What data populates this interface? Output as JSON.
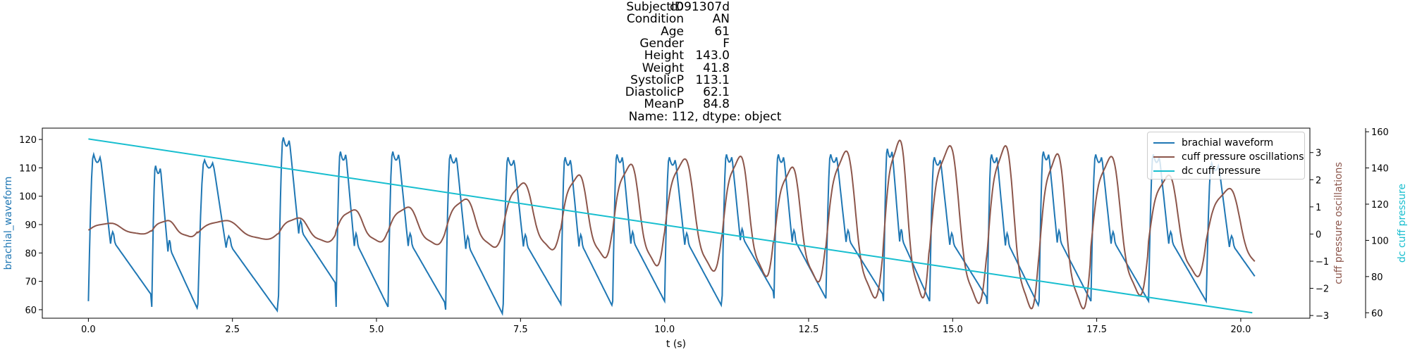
{
  "title": {
    "rows": [
      {
        "key": "SubjectID",
        "value": "c091307d"
      },
      {
        "key": "Condition",
        "value": "AN"
      },
      {
        "key": "Age",
        "value": "61"
      },
      {
        "key": "Gender",
        "value": "F"
      },
      {
        "key": "Height",
        "value": "143.0"
      },
      {
        "key": "Weight",
        "value": "41.8"
      },
      {
        "key": "SystolicP",
        "value": "113.1"
      },
      {
        "key": "DiastolicP",
        "value": "62.1"
      },
      {
        "key": "MeanP",
        "value": "84.8"
      }
    ],
    "footer": "Name: 112, dtype: object"
  },
  "chart_data": {
    "type": "line",
    "xlabel": "t (s)",
    "xlim": [
      -0.8,
      21.2
    ],
    "x_ticks": [
      "0.0",
      "2.5",
      "5.0",
      "7.5",
      "10.0",
      "12.5",
      "15.0",
      "17.5",
      "20.0"
    ],
    "grid": false,
    "legend_position": "top-right",
    "axes": [
      {
        "side": "left",
        "label": "brachial_waveform",
        "color": "#1f77b4",
        "ylim": [
          57,
          124
        ],
        "ticks": [
          "60",
          "70",
          "80",
          "90",
          "100",
          "110",
          "120"
        ]
      },
      {
        "side": "right",
        "label": "cuff pressure oscillations",
        "color": "#8c564b",
        "ylim": [
          -3.1,
          3.9
        ],
        "ticks": [
          "−3",
          "−2",
          "−1",
          "0",
          "1",
          "2",
          "3"
        ]
      },
      {
        "side": "right-outer",
        "label": "dc cuff pressure",
        "color": "#17becf",
        "ylim": [
          57,
          162
        ],
        "ticks": [
          "60",
          "80",
          "100",
          "120",
          "140",
          "160"
        ]
      }
    ],
    "series": [
      {
        "name": "brachial waveform",
        "color": "#1f77b4",
        "axis": 0,
        "beat_times": [
          0.0,
          1.1,
          1.9,
          3.3,
          4.3,
          5.2,
          6.2,
          7.2,
          8.2,
          9.1,
          10.0,
          11.0,
          11.9,
          12.8,
          13.8,
          14.6,
          15.6,
          16.5,
          17.4,
          18.4,
          19.4
        ],
        "beat_peaks": [
          115,
          111,
          113,
          121,
          116,
          116,
          115,
          114,
          114,
          115,
          114,
          115,
          115,
          115,
          117,
          114,
          115,
          116,
          115,
          115,
          112
        ],
        "beat_minima": [
          63,
          61,
          62,
          65,
          61,
          61,
          60,
          62,
          62,
          63,
          63,
          65,
          64,
          64,
          63,
          63,
          62,
          63,
          63,
          63,
          63
        ]
      },
      {
        "name": "cuff pressure oscillations",
        "color": "#8c564b",
        "axis": 1,
        "beat_times": [
          0.0,
          1.1,
          1.9,
          3.3,
          4.3,
          5.2,
          6.2,
          7.2,
          8.2,
          9.1,
          10.0,
          11.0,
          11.9,
          12.8,
          13.8,
          14.6,
          15.6,
          16.5,
          17.4,
          18.4,
          19.4
        ],
        "beat_peaks": [
          0.4,
          0.5,
          0.5,
          0.6,
          0.9,
          1.0,
          1.3,
          1.9,
          2.2,
          2.6,
          2.8,
          2.9,
          2.5,
          3.1,
          3.5,
          3.3,
          3.3,
          3.0,
          2.9,
          2.2,
          1.7
        ],
        "beat_minima": [
          0.0,
          -0.1,
          -0.2,
          -0.3,
          -0.3,
          -0.4,
          -0.5,
          -0.6,
          -0.9,
          -1.2,
          -1.4,
          -1.6,
          -1.8,
          -2.4,
          -2.4,
          -2.6,
          -2.8,
          -2.8,
          -2.3,
          -1.6,
          -1.3
        ]
      },
      {
        "name": "dc cuff pressure",
        "color": "#17becf",
        "axis": 2,
        "x": [
          0.0,
          20.2
        ],
        "y": [
          156,
          60
        ]
      }
    ]
  }
}
